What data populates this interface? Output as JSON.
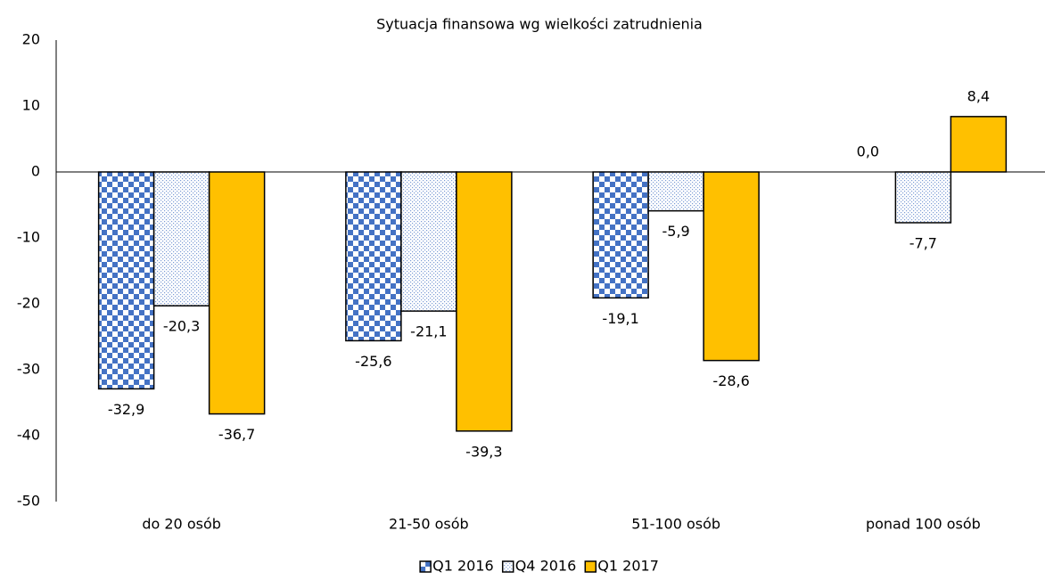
{
  "chart_data": {
    "type": "bar",
    "title": "Sytuacja finansowa wg wielkości zatrudnienia",
    "categories": [
      "do 20 osób",
      "21-50 osób",
      "51-100 osób",
      "ponad 100 osób"
    ],
    "series": [
      {
        "name": "Q1 2016",
        "color": "#4472c4",
        "pattern": "checker",
        "values": [
          -32.9,
          -25.6,
          -19.1,
          0.0
        ],
        "value_labels": [
          "-32,9",
          "-25,6",
          "-19,1",
          "0,0"
        ]
      },
      {
        "name": "Q4 2016",
        "color": "#4472c4",
        "pattern": "dots",
        "values": [
          -20.3,
          -21.1,
          -5.9,
          -7.7
        ],
        "value_labels": [
          "-20,3",
          "-21,1",
          "-5,9",
          "-7,7"
        ]
      },
      {
        "name": "Q1 2017",
        "color": "#ffc000",
        "pattern": "solid",
        "values": [
          -36.7,
          -39.3,
          -28.6,
          8.4
        ],
        "value_labels": [
          "-36,7",
          "-39,3",
          "-28,6",
          "8,4"
        ]
      }
    ],
    "ylim": [
      -50,
      20
    ],
    "yticks": [
      -50,
      -40,
      -30,
      -20,
      -10,
      0,
      10,
      20
    ],
    "grid": false,
    "legend": "bottom"
  }
}
